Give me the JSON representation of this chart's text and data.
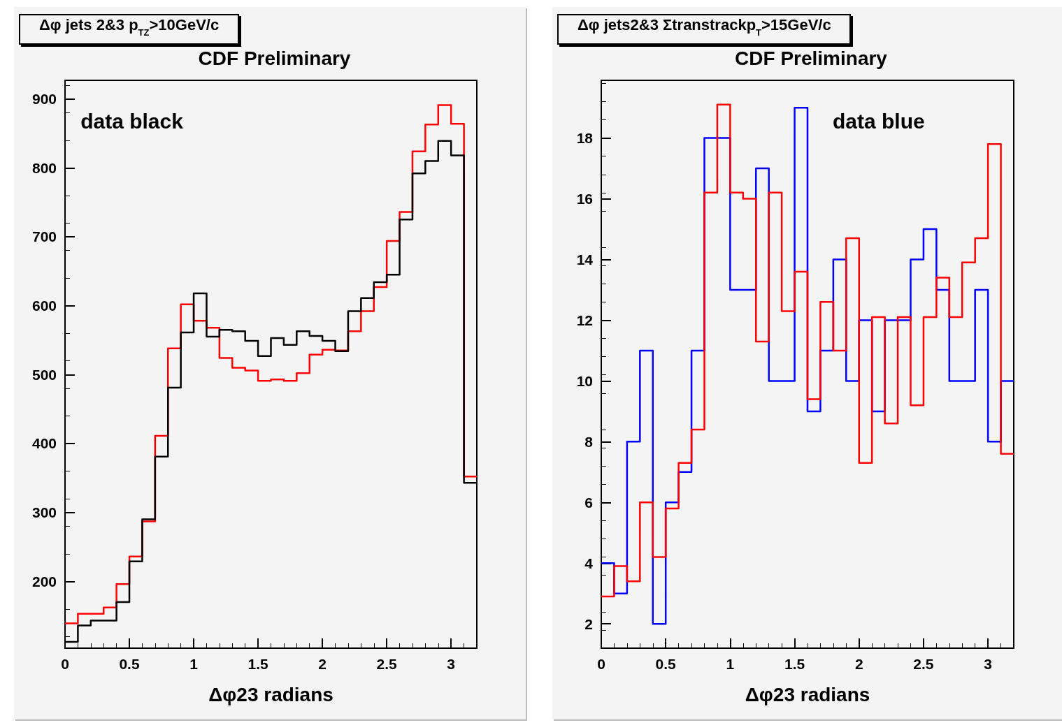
{
  "chart_data": [
    {
      "type": "histogram",
      "title": "Δφ jets 2&3 p$_{TZ}$>10GeV/c",
      "subtitle": "CDF Preliminary",
      "xlabel": "Δφ23 radians",
      "annotations": [
        "data black"
      ],
      "bins": [
        0,
        0.1,
        0.2,
        0.3,
        0.4,
        0.5,
        0.6,
        0.7,
        0.8,
        0.9,
        1.0,
        1.1,
        1.2,
        1.3,
        1.4,
        1.5,
        1.6,
        1.7,
        1.8,
        1.9,
        2.0,
        2.1,
        2.2,
        2.3,
        2.4,
        2.5,
        2.6,
        2.7,
        2.8,
        2.9,
        3.0,
        3.1,
        3.2
      ],
      "series": [
        {
          "color": "#ff0000",
          "values": [
            139,
            153,
            153,
            162,
            196,
            236,
            287,
            411,
            538,
            602,
            578,
            568,
            524,
            510,
            506,
            491,
            493,
            491,
            502,
            529,
            536,
            535,
            563,
            592,
            627,
            694,
            736,
            824,
            863,
            891,
            864,
            352
          ]
        },
        {
          "color": "#000000",
          "values": [
            112,
            136,
            143,
            143,
            170,
            229,
            290,
            381,
            481,
            561,
            618,
            555,
            565,
            563,
            549,
            527,
            553,
            543,
            563,
            556,
            549,
            534,
            592,
            611,
            634,
            645,
            725,
            792,
            810,
            839,
            818,
            343
          ]
        }
      ],
      "xlim": [
        0,
        3.2
      ],
      "xticks": [
        0,
        0.5,
        1,
        1.5,
        2,
        2.5,
        3
      ],
      "ylim": [
        103,
        927
      ],
      "yticks": [
        200,
        300,
        400,
        500,
        600,
        700,
        800,
        900
      ],
      "grid": false
    },
    {
      "type": "histogram",
      "title": "Δφ jets2&3 Σtranstrackp$_{T}$>15GeV/c",
      "subtitle": "CDF Preliminary",
      "xlabel": "Δφ23 radians",
      "annotations": [
        "data blue"
      ],
      "bins": [
        0,
        0.1,
        0.2,
        0.3,
        0.4,
        0.5,
        0.6,
        0.7,
        0.8,
        0.9,
        1.0,
        1.1,
        1.2,
        1.3,
        1.4,
        1.5,
        1.6,
        1.7,
        1.8,
        1.9,
        2.0,
        2.1,
        2.2,
        2.3,
        2.4,
        2.5,
        2.6,
        2.7,
        2.8,
        2.9,
        3.0,
        3.1,
        3.2
      ],
      "series": [
        {
          "color": "#0000ff",
          "values": [
            4,
            3,
            8,
            11,
            2,
            6,
            7,
            11,
            18,
            18,
            13,
            13,
            17,
            10,
            10,
            19,
            9,
            11,
            14,
            10,
            12,
            9,
            12,
            12,
            14,
            15,
            13,
            10,
            10,
            13,
            8,
            10
          ]
        },
        {
          "color": "#ff0000",
          "values": [
            2.9,
            3.9,
            3.4,
            6.0,
            4.2,
            5.8,
            7.3,
            8.4,
            16.2,
            19.1,
            16.2,
            16.0,
            11.3,
            16.2,
            12.3,
            13.6,
            9.4,
            12.6,
            11.0,
            14.7,
            7.3,
            12.1,
            8.6,
            12.1,
            9.2,
            12.1,
            13.4,
            12.1,
            13.9,
            14.7,
            17.8,
            7.6
          ]
        }
      ],
      "xlim": [
        0,
        3.2
      ],
      "xticks": [
        0,
        0.5,
        1,
        1.5,
        2,
        2.5,
        3
      ],
      "ylim": [
        1.2,
        19.9
      ],
      "yticks": [
        2,
        4,
        6,
        8,
        10,
        12,
        14,
        16,
        18
      ],
      "grid": false
    }
  ]
}
